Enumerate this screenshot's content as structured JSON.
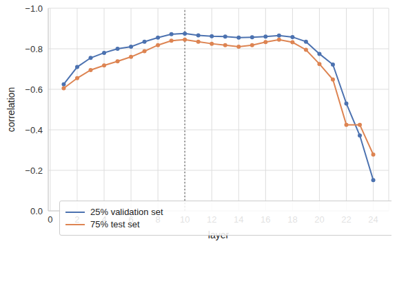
{
  "chart_data": {
    "type": "line",
    "x_label": "layer",
    "y_label": "correlation",
    "x": [
      1,
      2,
      3,
      4,
      5,
      6,
      7,
      8,
      9,
      10,
      11,
      12,
      13,
      14,
      15,
      16,
      17,
      18,
      19,
      20,
      21,
      22,
      23,
      24
    ],
    "series": [
      {
        "name": "25% validation set",
        "color": "#4c72b0",
        "marker": "circle",
        "values": [
          -0.625,
          -0.71,
          -0.755,
          -0.78,
          -0.8,
          -0.81,
          -0.835,
          -0.855,
          -0.872,
          -0.875,
          -0.866,
          -0.862,
          -0.86,
          -0.855,
          -0.857,
          -0.86,
          -0.865,
          -0.858,
          -0.835,
          -0.775,
          -0.722,
          -0.53,
          -0.372,
          -0.152
        ]
      },
      {
        "name": "75% test set",
        "color": "#dd8452",
        "marker": "circle",
        "values": [
          -0.605,
          -0.655,
          -0.695,
          -0.718,
          -0.738,
          -0.76,
          -0.788,
          -0.818,
          -0.84,
          -0.845,
          -0.835,
          -0.825,
          -0.818,
          -0.81,
          -0.818,
          -0.833,
          -0.845,
          -0.832,
          -0.795,
          -0.725,
          -0.648,
          -0.425,
          -0.425,
          -0.278
        ]
      }
    ],
    "xlim": [
      -0.15,
      25.15
    ],
    "xticks": [
      0,
      2,
      4,
      6,
      8,
      10,
      12,
      14,
      16,
      18,
      20,
      22,
      24
    ],
    "ylim": [
      0,
      -1
    ],
    "yticks": [
      {
        "value": 0,
        "label": "0.0"
      },
      {
        "value": -0.2,
        "label": "−0.2"
      },
      {
        "value": -0.4,
        "label": "−0.4"
      },
      {
        "value": -0.6,
        "label": "−0.6"
      },
      {
        "value": -0.8,
        "label": "−0.8"
      },
      {
        "value": -1,
        "label": "−1.0"
      }
    ],
    "vline": {
      "x": 10,
      "line_style": "dotted"
    },
    "grid": true,
    "legend": "lower left"
  }
}
